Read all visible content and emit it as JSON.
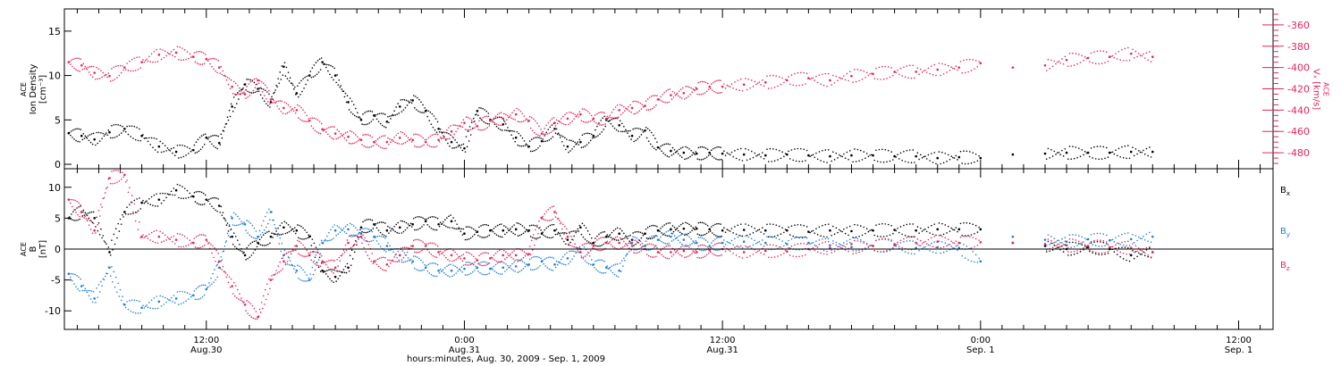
{
  "colors": {
    "black": "#000000",
    "red": "#e0275a",
    "blue": "#1f7fd6",
    "axis": "#000000",
    "velocity_axis": "#e0275a"
  },
  "chart_data": [
    {
      "type": "scatter",
      "panel": "top",
      "ylabel_lines": [
        "ACE",
        "Ion Density",
        "[cm⁻³]"
      ],
      "ylabel_right_lines": [
        "ACE",
        "Vₓ [km/s]"
      ],
      "ylim": [
        -0.5,
        17.5
      ],
      "y_ticks": [
        0,
        5,
        10,
        15
      ],
      "y_ticks_right": [
        -360,
        -380,
        -400,
        -420,
        -440,
        -460,
        -480
      ],
      "ylim_right": [
        -495,
        -345
      ],
      "grid": false,
      "series": [
        {
          "key": "density",
          "axis": "left",
          "color": "black",
          "x": [
            5.6,
            6.2,
            6.8,
            7.5,
            8.2,
            9.0,
            9.8,
            10.6,
            11.4,
            12.0,
            12.6,
            13.2,
            13.8,
            14.4,
            15.0,
            15.6,
            16.2,
            16.8,
            17.4,
            18.0,
            18.6,
            19.2,
            19.8,
            20.4,
            21.0,
            21.6,
            22.2,
            22.8,
            23.4,
            24.0,
            24.6,
            25.2,
            25.8,
            26.4,
            27.0,
            27.6,
            28.2,
            28.8,
            29.4,
            30.0,
            30.6,
            31.2,
            31.8,
            32.4,
            33.0,
            33.6,
            34.2,
            34.8,
            35.4,
            36.0,
            37.0,
            38.0,
            39.0,
            40.0,
            41.0,
            42.0,
            43.0,
            44.0,
            45.0,
            46.0,
            47.0,
            48.0,
            49.5,
            51.0,
            52.0,
            53.0,
            54.0,
            55.0,
            56.0
          ],
          "y": [
            3.5,
            3.2,
            2.8,
            3.6,
            4.0,
            3.2,
            2.0,
            1.4,
            1.6,
            3.0,
            2.4,
            6.5,
            9.0,
            8.5,
            7.0,
            11.0,
            8.0,
            10.0,
            11.5,
            10.0,
            7.0,
            5.0,
            5.5,
            4.8,
            6.5,
            7.2,
            6.0,
            4.0,
            2.5,
            1.8,
            6.0,
            5.0,
            4.5,
            3.0,
            2.0,
            2.6,
            4.0,
            2.0,
            2.5,
            3.2,
            5.0,
            4.4,
            3.2,
            3.8,
            1.9,
            1.5,
            1.3,
            1.2,
            1.3,
            1.2,
            1.1,
            1.0,
            1.1,
            1.0,
            0.9,
            1.0,
            1.0,
            0.9,
            0.9,
            0.7,
            0.8,
            0.7,
            1.1,
            1.2,
            1.3,
            1.3,
            1.3,
            1.4,
            1.4
          ]
        },
        {
          "key": "vx",
          "axis": "right",
          "color": "red",
          "x": [
            5.6,
            6.2,
            6.8,
            7.5,
            8.2,
            9.0,
            9.8,
            10.6,
            11.4,
            12.0,
            12.6,
            13.2,
            13.8,
            14.4,
            15.0,
            15.6,
            16.2,
            16.8,
            17.4,
            18.0,
            18.6,
            19.2,
            19.8,
            20.4,
            21.0,
            21.6,
            22.2,
            22.8,
            23.4,
            24.0,
            24.6,
            25.2,
            25.8,
            26.4,
            27.0,
            27.6,
            28.2,
            28.8,
            29.4,
            30.0,
            30.6,
            31.2,
            31.8,
            32.4,
            33.0,
            33.6,
            34.2,
            34.8,
            35.4,
            36.0,
            37.0,
            38.0,
            39.0,
            40.0,
            41.0,
            42.0,
            43.0,
            44.0,
            45.0,
            46.0,
            47.0,
            48.0,
            49.5,
            51.0,
            52.0,
            53.0,
            54.0,
            55.0,
            56.0
          ],
          "y": [
            -395,
            -398,
            -405,
            -408,
            -400,
            -395,
            -388,
            -386,
            -390,
            -392,
            -400,
            -418,
            -425,
            -412,
            -430,
            -438,
            -440,
            -450,
            -458,
            -462,
            -465,
            -468,
            -470,
            -470,
            -466,
            -468,
            -470,
            -468,
            -460,
            -452,
            -455,
            -450,
            -448,
            -444,
            -450,
            -462,
            -452,
            -448,
            -444,
            -448,
            -448,
            -440,
            -438,
            -436,
            -430,
            -426,
            -424,
            -420,
            -418,
            -418,
            -416,
            -414,
            -412,
            -410,
            -412,
            -408,
            -406,
            -404,
            -404,
            -402,
            -400,
            -396,
            -400,
            -398,
            -393,
            -391,
            -390,
            -387,
            -390
          ]
        }
      ]
    },
    {
      "type": "scatter",
      "panel": "bottom",
      "ylabel_lines": [
        "ACE",
        "B",
        "[nT]"
      ],
      "ylim": [
        -13,
        13
      ],
      "y_ticks": [
        10,
        5,
        0,
        -5,
        -10
      ],
      "zero_line": true,
      "grid": false,
      "series": [
        {
          "name": "Bₓ",
          "color": "black",
          "x": [
            5.6,
            6.2,
            6.8,
            7.5,
            8.2,
            9.0,
            9.8,
            10.6,
            11.4,
            12.0,
            12.6,
            13.2,
            13.8,
            14.4,
            15.0,
            15.6,
            16.2,
            16.8,
            17.4,
            18.0,
            18.6,
            19.2,
            19.8,
            20.4,
            21.0,
            21.6,
            22.2,
            22.8,
            23.4,
            24.0,
            24.6,
            25.2,
            25.8,
            26.4,
            27.0,
            27.6,
            28.2,
            28.8,
            29.4,
            30.0,
            30.6,
            31.2,
            31.8,
            32.4,
            33.0,
            33.6,
            34.2,
            34.8,
            35.4,
            36.0,
            37.0,
            38.0,
            39.0,
            40.0,
            41.0,
            42.0,
            43.0,
            44.0,
            45.0,
            46.0,
            47.0,
            48.0,
            49.5,
            51.0,
            52.0,
            53.0,
            54.0,
            55.0,
            56.0
          ],
          "y": [
            5.0,
            6.0,
            5.0,
            -0.5,
            6.0,
            7.5,
            8.0,
            9.5,
            8.5,
            8.0,
            7.0,
            2.0,
            -1.0,
            1.0,
            2.0,
            3.5,
            3.0,
            2.0,
            -3.5,
            -4.5,
            -3.0,
            3.5,
            4.0,
            3.0,
            3.5,
            4.0,
            4.5,
            4.0,
            4.5,
            2.5,
            2.8,
            3.0,
            3.0,
            3.2,
            3.0,
            2.5,
            3.0,
            1.5,
            3.5,
            1.0,
            2.0,
            2.5,
            1.5,
            2.5,
            3.0,
            3.2,
            3.3,
            3.3,
            3.2,
            3.0,
            3.1,
            3.0,
            3.0,
            2.8,
            3.0,
            2.9,
            3.0,
            3.1,
            3.0,
            3.2,
            3.2,
            3.2,
            1.0,
            0.5,
            0.0,
            0.3,
            0.0,
            -1.0,
            -0.5
          ]
        },
        {
          "name": "Bᵧ",
          "color": "blue",
          "x": [
            5.6,
            6.2,
            6.8,
            7.5,
            8.2,
            9.0,
            9.8,
            10.6,
            11.4,
            12.0,
            12.6,
            13.2,
            13.8,
            14.4,
            15.0,
            15.6,
            16.2,
            16.8,
            17.4,
            18.0,
            18.6,
            19.2,
            19.8,
            20.4,
            21.0,
            21.6,
            22.2,
            22.8,
            23.4,
            24.0,
            24.6,
            25.2,
            25.8,
            26.4,
            27.0,
            27.6,
            28.2,
            28.8,
            29.4,
            30.0,
            30.6,
            31.2,
            31.8,
            32.4,
            33.0,
            33.6,
            34.2,
            34.8,
            35.4,
            36.0,
            37.0,
            38.0,
            39.0,
            40.0,
            41.0,
            42.0,
            43.0,
            44.0,
            45.0,
            46.0,
            47.0,
            48.0,
            49.5,
            51.0,
            52.0,
            53.0,
            54.0,
            55.0,
            56.0
          ],
          "y": [
            -4.0,
            -6.0,
            -8.0,
            -3.0,
            -9.0,
            -9.5,
            -8.5,
            -8.0,
            -7.5,
            -6.5,
            -3.0,
            5.0,
            4.0,
            2.0,
            6.0,
            -1.0,
            -3.5,
            -5.0,
            1.0,
            3.0,
            3.2,
            2.5,
            2.0,
            0.5,
            -1.0,
            -2.0,
            -3.0,
            -3.5,
            -3.5,
            -3.2,
            -3.0,
            -3.2,
            -3.0,
            -2.8,
            -2.5,
            -2.0,
            -2.5,
            -1.5,
            0.0,
            -2.5,
            -3.0,
            -3.5,
            1.0,
            0.5,
            1.5,
            2.0,
            1.5,
            1.0,
            0.5,
            1.0,
            1.2,
            1.0,
            0.8,
            1.0,
            0.6,
            0.8,
            0.5,
            0.6,
            0.2,
            0.3,
            0.2,
            -2.0,
            2.0,
            1.5,
            1.2,
            1.6,
            1.4,
            1.6,
            2.0
          ]
        },
        {
          "name": "B_z",
          "color": "red",
          "x": [
            5.6,
            6.2,
            6.8,
            7.5,
            8.2,
            9.0,
            9.8,
            10.6,
            11.4,
            12.0,
            12.6,
            13.2,
            13.8,
            14.4,
            15.0,
            15.6,
            16.2,
            16.8,
            17.4,
            18.0,
            18.6,
            19.2,
            19.8,
            20.4,
            21.0,
            21.6,
            22.2,
            22.8,
            23.4,
            24.0,
            24.6,
            25.2,
            25.8,
            26.4,
            27.0,
            27.6,
            28.2,
            28.8,
            29.4,
            30.0,
            30.6,
            31.2,
            31.8,
            32.4,
            33.0,
            33.6,
            34.2,
            34.8,
            35.4,
            36.0,
            37.0,
            38.0,
            39.0,
            40.0,
            41.0,
            42.0,
            43.0,
            44.0,
            45.0,
            46.0,
            47.0,
            48.0,
            49.5,
            51.0,
            52.0,
            53.0,
            54.0,
            55.0,
            56.0
          ],
          "y": [
            8.0,
            6.0,
            3.0,
            11.5,
            12.0,
            2.0,
            2.0,
            1.5,
            1.0,
            1.5,
            -2.0,
            -6.0,
            -9.0,
            -11.0,
            -5.0,
            -2.0,
            0.5,
            -1.0,
            -2.0,
            -3.0,
            1.0,
            2.0,
            -2.0,
            -2.5,
            -1.0,
            0.5,
            0.5,
            -0.5,
            -1.0,
            -1.5,
            -1.8,
            -1.5,
            -1.0,
            -1.0,
            -0.8,
            5.0,
            6.0,
            2.0,
            -0.5,
            0.5,
            1.0,
            1.0,
            0.5,
            0.0,
            -0.5,
            -0.5,
            -0.3,
            -0.5,
            -0.2,
            0.0,
            -0.5,
            -0.3,
            -0.4,
            0.0,
            0.2,
            0.3,
            0.5,
            0.8,
            1.0,
            1.2,
            1.0,
            1.1,
            1.0,
            0.8,
            0.6,
            0.5,
            0.3,
            0.2,
            -0.5
          ]
        }
      ]
    }
  ],
  "x_axis": {
    "xlim": [
      5.4,
      61.6
    ],
    "major_ticks": [
      {
        "x": 12,
        "time": "12:00",
        "date": "Aug.30"
      },
      {
        "x": 24,
        "time": "0:00",
        "date": "Aug.31"
      },
      {
        "x": 36,
        "time": "12:00",
        "date": "Aug.31"
      },
      {
        "x": 48,
        "time": "0:00",
        "date": "Sep. 1"
      },
      {
        "x": 60,
        "time": "12:00",
        "date": "Sep. 1"
      }
    ],
    "xlabel": "hours:minutes, Aug. 30, 2009 - Sep.  1, 2009"
  },
  "legend": {
    "bx": "B",
    "bx_sub": "x",
    "by": "B",
    "by_sub": "y",
    "bz": "B",
    "bz_sub": "z"
  }
}
